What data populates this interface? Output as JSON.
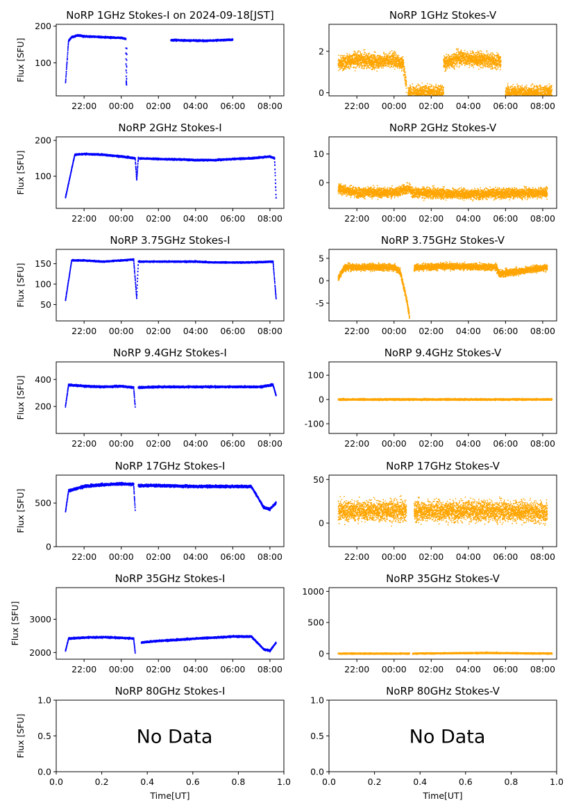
{
  "page_title": "NoRP 1GHz Stokes-I on 2024-09-18[JST]",
  "xlabel": "Time[UT]",
  "ylabel": "Flux [SFU]",
  "nodata_text": "No Data",
  "colors": {
    "stokes_i": "#0000ff",
    "stokes_v": "#ffa500"
  },
  "time_ticks": [
    "22:00",
    "00:00",
    "02:00",
    "04:00",
    "06:00",
    "08:00"
  ],
  "chart_data": [
    {
      "id": "1i",
      "type": "scatter",
      "title": "NoRP 1GHz Stokes-I on 2024-09-18[JST]",
      "ylabel": "Flux [SFU]",
      "xlim": [
        "20:30",
        "08:45"
      ],
      "ylim": [
        10,
        205
      ],
      "yticks": [
        100,
        200
      ],
      "segments": [
        {
          "t": [
            "21:00",
            "21:10",
            "21:20",
            "21:40",
            "22:00",
            "23:00",
            "00:00",
            "00:15"
          ],
          "v": [
            45,
            160,
            170,
            175,
            172,
            170,
            168,
            165
          ]
        },
        {
          "t": [
            "00:15",
            "00:16",
            "00:17",
            "00:18"
          ],
          "v": [
            140,
            50,
            40,
            140
          ]
        },
        {
          "t": [
            "02:40",
            "03:30",
            "04:30",
            "05:30",
            "06:00"
          ],
          "v": [
            162,
            161,
            160,
            162,
            163
          ]
        }
      ],
      "noise": 4
    },
    {
      "id": "1v",
      "type": "scatter",
      "title": "NoRP 1GHz Stokes-V",
      "ylabel": "",
      "xlim": [
        "20:30",
        "08:45"
      ],
      "ylim": [
        -0.15,
        3.3
      ],
      "yticks": [
        0,
        2
      ],
      "segments": [
        {
          "t": [
            "21:00",
            "22:00",
            "23:00",
            "00:00",
            "00:30",
            "00:40"
          ],
          "v": [
            1.4,
            1.6,
            1.5,
            1.6,
            1.4,
            0.3
          ]
        },
        {
          "t": [
            "00:45",
            "02:40"
          ],
          "v": [
            0,
            0
          ]
        },
        {
          "t": [
            "02:40",
            "03:30",
            "04:30",
            "05:45"
          ],
          "v": [
            1.4,
            1.7,
            1.6,
            1.5
          ]
        },
        {
          "t": [
            "06:00",
            "08:30"
          ],
          "v": [
            0,
            0
          ]
        }
      ],
      "noise": 0.6
    },
    {
      "id": "2i",
      "type": "scatter",
      "title": "NoRP 2GHz Stokes-I",
      "ylabel": "Flux [SFU]",
      "xlim": [
        "20:30",
        "08:45"
      ],
      "ylim": [
        10,
        210
      ],
      "yticks": [
        100,
        200
      ],
      "segments": [
        {
          "t": [
            "21:00",
            "21:30",
            "22:00",
            "23:00",
            "00:00",
            "00:45",
            "00:50",
            "00:55"
          ],
          "v": [
            40,
            160,
            162,
            160,
            155,
            150,
            90,
            150
          ]
        },
        {
          "t": [
            "00:55",
            "02:00",
            "03:00",
            "04:00",
            "05:00",
            "06:00",
            "07:00",
            "08:00",
            "08:15",
            "08:20"
          ],
          "v": [
            150,
            148,
            147,
            145,
            145,
            148,
            150,
            155,
            150,
            40
          ]
        }
      ],
      "noise": 4
    },
    {
      "id": "2v",
      "type": "scatter",
      "title": "NoRP 2GHz Stokes-V",
      "ylabel": "",
      "xlim": [
        "20:30",
        "08:45"
      ],
      "ylim": [
        -9,
        16
      ],
      "yticks": [
        0,
        10
      ],
      "segments": [
        {
          "t": [
            "21:00",
            "22:00",
            "00:00",
            "00:50",
            "01:00",
            "04:00",
            "08:15"
          ],
          "v": [
            -2,
            -3.5,
            -3.5,
            -2,
            -3.5,
            -4,
            -3.5
          ]
        }
      ],
      "noise": 3
    },
    {
      "id": "3i",
      "type": "scatter",
      "title": "NoRP 3.75GHz Stokes-I",
      "ylabel": "Flux [SFU]",
      "xlim": [
        "20:30",
        "08:45"
      ],
      "ylim": [
        10,
        185
      ],
      "yticks": [
        50,
        100,
        150
      ],
      "segments": [
        {
          "t": [
            "21:00",
            "21:20",
            "22:00",
            "23:00",
            "00:00",
            "00:40",
            "00:50",
            "00:55"
          ],
          "v": [
            60,
            158,
            158,
            155,
            158,
            160,
            65,
            155
          ]
        },
        {
          "t": [
            "00:55",
            "02:00",
            "03:00",
            "04:00",
            "05:00",
            "06:00",
            "07:00",
            "08:10",
            "08:20"
          ],
          "v": [
            155,
            155,
            155,
            155,
            153,
            153,
            153,
            155,
            65
          ]
        }
      ],
      "noise": 3
    },
    {
      "id": "3v",
      "type": "scatter",
      "title": "NoRP 3.75GHz Stokes-V",
      "ylabel": "",
      "xlim": [
        "20:30",
        "08:45"
      ],
      "ylim": [
        -9,
        7
      ],
      "yticks": [
        -5,
        0,
        5
      ],
      "segments": [
        {
          "t": [
            "21:00",
            "21:20",
            "00:00",
            "00:20",
            "00:40",
            "00:50"
          ],
          "v": [
            0.5,
            3,
            3,
            2,
            -4,
            -8
          ]
        },
        {
          "t": [
            "01:05",
            "03:00",
            "05:30",
            "05:40",
            "08:15"
          ],
          "v": [
            3,
            3.2,
            3,
            1.5,
            3
          ]
        }
      ],
      "noise": 1.3
    },
    {
      "id": "9i",
      "type": "scatter",
      "title": "NoRP 9.4GHz Stokes-I",
      "ylabel": "Flux [SFU]",
      "xlim": [
        "20:30",
        "08:45"
      ],
      "ylim": [
        0,
        530
      ],
      "yticks": [
        200,
        400
      ],
      "segments": [
        {
          "t": [
            "21:00",
            "21:10",
            "22:00",
            "23:00",
            "00:00",
            "00:40",
            "00:45"
          ],
          "v": [
            200,
            360,
            350,
            345,
            350,
            340,
            200
          ]
        },
        {
          "t": [
            "00:55",
            "02:00",
            "04:00",
            "06:00",
            "07:30",
            "08:10",
            "08:20"
          ],
          "v": [
            340,
            345,
            345,
            345,
            345,
            360,
            280
          ]
        }
      ],
      "noise": 12
    },
    {
      "id": "9v",
      "type": "scatter",
      "title": "NoRP 9.4GHz Stokes-V",
      "ylabel": "",
      "xlim": [
        "20:30",
        "08:45"
      ],
      "ylim": [
        -140,
        155
      ],
      "yticks": [
        -100,
        0,
        100
      ],
      "segments": [
        {
          "t": [
            "21:00",
            "00:30",
            "00:50",
            "08:30"
          ],
          "v": [
            0,
            0,
            0,
            0
          ]
        }
      ],
      "noise": 6
    },
    {
      "id": "17i",
      "type": "scatter",
      "title": "NoRP 17GHz Stokes-I",
      "ylabel": "Flux [SFU]",
      "xlim": [
        "20:30",
        "08:45"
      ],
      "ylim": [
        0,
        820
      ],
      "yticks": [
        0,
        500
      ],
      "segments": [
        {
          "t": [
            "21:00",
            "21:10",
            "22:00",
            "23:00",
            "00:00",
            "00:40",
            "00:45"
          ],
          "v": [
            400,
            640,
            690,
            710,
            720,
            715,
            420
          ]
        },
        {
          "t": [
            "00:55",
            "02:00",
            "04:00",
            "06:00",
            "07:00",
            "07:40",
            "08:00",
            "08:20"
          ],
          "v": [
            700,
            700,
            690,
            690,
            690,
            450,
            430,
            500
          ]
        }
      ],
      "noise": 25
    },
    {
      "id": "17v",
      "type": "scatter",
      "title": "NoRP 17GHz Stokes-V",
      "ylabel": "",
      "xlim": [
        "20:30",
        "08:45"
      ],
      "ylim": [
        -27,
        55
      ],
      "yticks": [
        0,
        50
      ],
      "segments": [
        {
          "t": [
            "21:00",
            "00:40"
          ],
          "v": [
            14,
            14
          ]
        },
        {
          "t": [
            "01:05",
            "06:00",
            "08:15"
          ],
          "v": [
            14,
            14,
            12
          ]
        }
      ],
      "noise": 20
    },
    {
      "id": "35i",
      "type": "scatter",
      "title": "NoRP 35GHz Stokes-I",
      "ylabel": "Flux [SFU]",
      "xlim": [
        "20:30",
        "08:45"
      ],
      "ylim": [
        1800,
        3950
      ],
      "yticks": [
        2000,
        3000
      ],
      "segments": [
        {
          "t": [
            "21:00",
            "21:10",
            "22:00",
            "23:00",
            "00:00",
            "00:40",
            "00:45"
          ],
          "v": [
            2050,
            2420,
            2450,
            2460,
            2440,
            2420,
            2000
          ]
        },
        {
          "t": [
            "01:05",
            "02:00",
            "03:00",
            "04:00",
            "05:00",
            "06:00",
            "07:00",
            "07:40",
            "08:00",
            "08:20"
          ],
          "v": [
            2300,
            2350,
            2380,
            2420,
            2450,
            2480,
            2480,
            2100,
            2050,
            2300
          ]
        }
      ],
      "noise": 45
    },
    {
      "id": "35v",
      "type": "scatter",
      "title": "NoRP 35GHz Stokes-V",
      "ylabel": "",
      "xlim": [
        "20:30",
        "08:45"
      ],
      "ylim": [
        -90,
        1060
      ],
      "yticks": [
        0,
        500,
        1000
      ],
      "segments": [
        {
          "t": [
            "21:00",
            "00:50"
          ],
          "v": [
            0,
            0
          ]
        },
        {
          "t": [
            "01:00",
            "05:00",
            "08:30"
          ],
          "v": [
            0,
            10,
            0
          ]
        }
      ],
      "noise": 18
    },
    {
      "id": "80i",
      "type": "scatter",
      "title": "NoRP 80GHz Stokes-I",
      "ylabel": "Flux [SFU]",
      "xlim": [
        0,
        1
      ],
      "ylim": [
        0,
        1
      ],
      "xticks": [
        "0.0",
        "0.2",
        "0.4",
        "0.6",
        "0.8",
        "1.0"
      ],
      "yticks": [
        "0.0",
        "0.5",
        "1.0"
      ],
      "xlabel": "Time[UT]",
      "no_data": true
    },
    {
      "id": "80v",
      "type": "scatter",
      "title": "NoRP 80GHz Stokes-V",
      "ylabel": "",
      "xlim": [
        0,
        1
      ],
      "ylim": [
        0,
        1
      ],
      "xticks": [
        "0.0",
        "0.2",
        "0.4",
        "0.6",
        "0.8",
        "1.0"
      ],
      "yticks": [
        "0.0",
        "0.5",
        "1.0"
      ],
      "xlabel": "Time[UT]",
      "no_data": true
    }
  ]
}
